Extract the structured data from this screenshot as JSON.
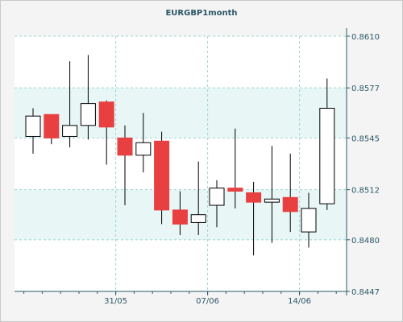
{
  "chart_data": {
    "type": "candlestick",
    "title": "EURGBP1month",
    "ylim": [
      0.8447,
      0.861
    ],
    "y_ticks": [
      "0.8610",
      "0.8577",
      "0.8545",
      "0.8512",
      "0.8480",
      "0.8447"
    ],
    "x_ticks": [
      {
        "label": "31/05",
        "index": 4.5
      },
      {
        "label": "07/06",
        "index": 9.5
      },
      {
        "label": "14/06",
        "index": 14.5
      }
    ],
    "grid": true,
    "colors": {
      "bullish": "#ffffff",
      "bearish": "#e84040",
      "outline": "#000000",
      "grid": "#9fd2d2",
      "band": "#e8f6f6"
    },
    "candles": [
      {
        "open": 0.8546,
        "high": 0.8564,
        "low": 0.8535,
        "close": 0.8559
      },
      {
        "open": 0.856,
        "high": 0.856,
        "low": 0.8541,
        "close": 0.8545
      },
      {
        "open": 0.8546,
        "high": 0.8594,
        "low": 0.8539,
        "close": 0.8553
      },
      {
        "open": 0.8553,
        "high": 0.8598,
        "low": 0.8544,
        "close": 0.8567
      },
      {
        "open": 0.8568,
        "high": 0.8569,
        "low": 0.8528,
        "close": 0.8552
      },
      {
        "open": 0.8545,
        "high": 0.8553,
        "low": 0.8502,
        "close": 0.8534
      },
      {
        "open": 0.8534,
        "high": 0.8561,
        "low": 0.8523,
        "close": 0.8542
      },
      {
        "open": 0.8543,
        "high": 0.8549,
        "low": 0.849,
        "close": 0.8499
      },
      {
        "open": 0.8499,
        "high": 0.8511,
        "low": 0.8483,
        "close": 0.849
      },
      {
        "open": 0.8491,
        "high": 0.853,
        "low": 0.8483,
        "close": 0.8496
      },
      {
        "open": 0.8502,
        "high": 0.8518,
        "low": 0.8488,
        "close": 0.8513
      },
      {
        "open": 0.8513,
        "high": 0.8551,
        "low": 0.85,
        "close": 0.8511
      },
      {
        "open": 0.851,
        "high": 0.8517,
        "low": 0.847,
        "close": 0.8504
      },
      {
        "open": 0.8504,
        "high": 0.854,
        "low": 0.8478,
        "close": 0.8506
      },
      {
        "open": 0.8507,
        "high": 0.8535,
        "low": 0.8485,
        "close": 0.8498
      },
      {
        "open": 0.8485,
        "high": 0.851,
        "low": 0.8475,
        "close": 0.85
      },
      {
        "open": 0.8503,
        "high": 0.8583,
        "low": 0.8499,
        "close": 0.8564
      }
    ]
  }
}
